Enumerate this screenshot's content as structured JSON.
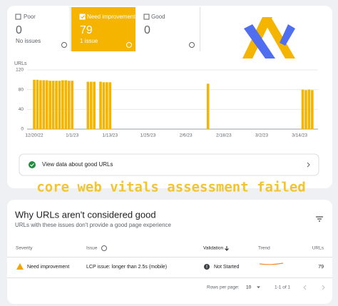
{
  "status_tabs": [
    {
      "label": "Poor",
      "count": 0,
      "detail": "No issues"
    },
    {
      "label": "Need improvement",
      "count": 79,
      "detail": "1 issue"
    },
    {
      "label": "Good",
      "count": 0
    }
  ],
  "chart_data": {
    "type": "bar",
    "y_label": "URLs",
    "color": "#f4b400",
    "categories": [
      "12/20/22",
      null,
      null,
      null,
      null,
      null,
      null,
      null,
      null,
      null,
      null,
      null,
      "1/1/23",
      null,
      null,
      null,
      null,
      null,
      null,
      null,
      null,
      null,
      null,
      null,
      "1/13/23",
      null,
      null,
      null,
      null,
      null,
      null,
      null,
      null,
      null,
      null,
      null,
      "1/25/23",
      null,
      null,
      null,
      null,
      null,
      null,
      null,
      null,
      null,
      null,
      null,
      "2/6/23",
      null,
      null,
      null,
      null,
      null,
      null,
      null,
      null,
      null,
      null,
      null,
      "2/18/23",
      null,
      null,
      null,
      null,
      null,
      null,
      null,
      null,
      null,
      null,
      null,
      "3/2/23",
      null,
      null,
      null,
      null,
      null,
      null,
      null,
      null,
      null,
      null,
      null,
      "3/14/23",
      null,
      null,
      null,
      null,
      null
    ],
    "values": [
      100,
      100,
      99,
      99,
      99,
      98,
      98,
      98,
      98,
      99,
      99,
      98,
      98,
      null,
      null,
      null,
      null,
      96,
      96,
      96,
      null,
      96,
      95,
      95,
      95,
      null,
      null,
      null,
      null,
      null,
      null,
      null,
      null,
      null,
      null,
      null,
      null,
      null,
      null,
      null,
      null,
      null,
      null,
      null,
      null,
      null,
      null,
      null,
      null,
      null,
      null,
      null,
      null,
      null,
      null,
      92,
      null,
      null,
      null,
      null,
      null,
      null,
      null,
      null,
      null,
      null,
      null,
      null,
      null,
      null,
      null,
      null,
      null,
      null,
      null,
      null,
      null,
      null,
      null,
      null,
      null,
      null,
      null,
      null,
      null,
      80,
      79,
      80,
      79,
      null
    ],
    "ylim": [
      0,
      120
    ],
    "yticks": [
      0,
      40,
      80,
      120
    ],
    "grid": true
  },
  "good_urls_link": "View data about good URLs",
  "overlay_text": "core web vitals assessment failed",
  "issues": {
    "title": "Why URLs aren't considered good",
    "subtitle": "URLs with these issues don't provide a good page experience",
    "columns": [
      "Severity",
      "Issue",
      "Validation",
      "Trend",
      "URLs"
    ],
    "rows": [
      [
        "Need improvement",
        "LCP issue: longer than 2.5s (mobile)",
        "Not Started",
        79
      ]
    ]
  },
  "pagination": {
    "rows_per_page_label": "Rows per page:",
    "rows_per_page": 10,
    "range": "1-1 of 1"
  }
}
